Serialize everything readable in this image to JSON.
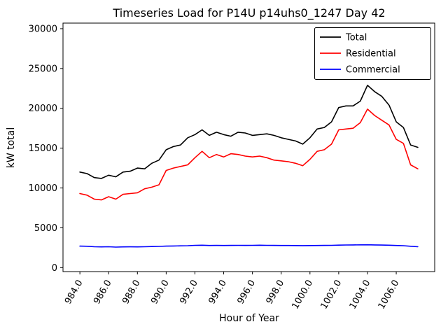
{
  "chart_data": {
    "type": "line",
    "title": "Timeseries Load for P14U p14uhs0_1247  Day 42",
    "xlabel": "Hour of Year",
    "ylabel": "kW total",
    "grid": false,
    "legend_position": "upper right",
    "ylim": [
      0,
      30000
    ],
    "xticks": {
      "values": [
        984,
        986,
        988,
        990,
        992,
        994,
        996,
        998,
        1000,
        1002,
        1004,
        1006
      ],
      "labels": [
        "984.0",
        "986.0",
        "988.0",
        "990.0",
        "992.0",
        "994.0",
        "996.0",
        "998.0",
        "1000.0",
        "1002.0",
        "1004.0",
        "1006.0"
      ]
    },
    "yticks": {
      "values": [
        0,
        5000,
        10000,
        15000,
        20000,
        25000,
        30000
      ],
      "labels": [
        "0",
        "5000",
        "10000",
        "15000",
        "20000",
        "25000",
        "30000"
      ]
    },
    "x": [
      984,
      984.5,
      985,
      985.5,
      986,
      986.5,
      987,
      987.5,
      988,
      988.5,
      989,
      989.5,
      990,
      990.5,
      991,
      991.5,
      992,
      992.5,
      993,
      993.5,
      994,
      994.5,
      995,
      995.5,
      996,
      996.5,
      997,
      997.5,
      998,
      998.5,
      999,
      999.5,
      1000,
      1000.5,
      1001,
      1001.5,
      1002,
      1002.5,
      1003,
      1003.5,
      1004,
      1004.5,
      1005,
      1005.5,
      1006,
      1006.5,
      1007,
      1007.5
    ],
    "series": [
      {
        "name": "Total",
        "color": "#000000",
        "values": [
          12000,
          11800,
          11300,
          11200,
          11600,
          11400,
          12000,
          12100,
          12500,
          12400,
          13100,
          13500,
          14800,
          15200,
          15400,
          16300,
          16700,
          17300,
          16600,
          17000,
          16700,
          16500,
          17000,
          16900,
          16600,
          16700,
          16800,
          16600,
          16300,
          16100,
          15900,
          15500,
          16300,
          17400,
          17600,
          18300,
          20100,
          20300,
          20300,
          20900,
          22900,
          22100,
          21500,
          20400,
          18300,
          17600,
          15400,
          15100
        ]
      },
      {
        "name": "Residential",
        "color": "#ff0000",
        "values": [
          9300,
          9100,
          8600,
          8500,
          8900,
          8600,
          9200,
          9300,
          9400,
          9900,
          10100,
          10400,
          12200,
          12500,
          12700,
          12900,
          13800,
          14600,
          13800,
          14200,
          13900,
          14300,
          14200,
          14000,
          13900,
          14000,
          13800,
          13500,
          13400,
          13300,
          13100,
          12800,
          13600,
          14600,
          14800,
          15500,
          17300,
          17400,
          17500,
          18200,
          19900,
          19100,
          18500,
          17900,
          16100,
          15600,
          12900,
          12400
        ]
      },
      {
        "name": "Commercial",
        "color": "#0000ff",
        "values": [
          2700,
          2680,
          2620,
          2600,
          2620,
          2580,
          2600,
          2610,
          2600,
          2620,
          2650,
          2660,
          2700,
          2720,
          2730,
          2750,
          2800,
          2810,
          2780,
          2790,
          2780,
          2790,
          2800,
          2790,
          2800,
          2810,
          2800,
          2790,
          2780,
          2780,
          2770,
          2760,
          2770,
          2780,
          2790,
          2800,
          2820,
          2840,
          2850,
          2860,
          2870,
          2850,
          2830,
          2810,
          2780,
          2750,
          2680,
          2620
        ]
      }
    ]
  }
}
